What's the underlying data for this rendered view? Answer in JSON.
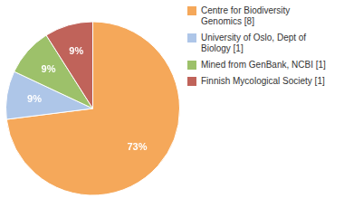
{
  "chart_data": {
    "type": "pie",
    "categories": [
      "Centre for Biodiversity\nGenomics [8]",
      "University of Oslo, Dept of\nBiology [1]",
      "Mined from GenBank, NCBI [1]",
      "Finnish Mycological Society [1]"
    ],
    "values": [
      73,
      9,
      9,
      9
    ],
    "value_labels": [
      "73%",
      "9%",
      "9%",
      "9%"
    ],
    "colors": [
      "#F5A85A",
      "#AEC6E8",
      "#9DC16A",
      "#C0635A"
    ],
    "data_labels": true,
    "legend": "right"
  }
}
